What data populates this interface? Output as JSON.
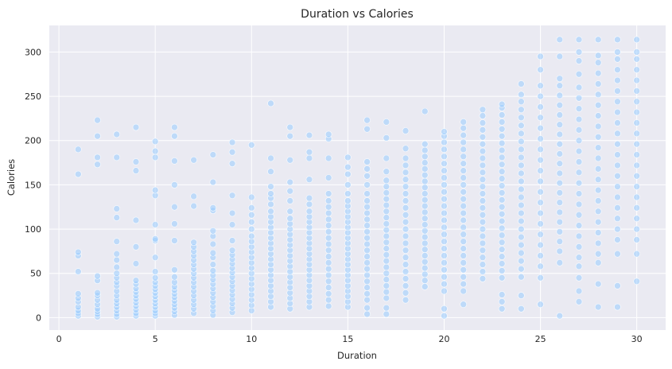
{
  "chart_data": {
    "type": "scatter",
    "title": "Duration vs Calories",
    "xlabel": "Duration",
    "ylabel": "Calories",
    "xlim": [
      -0.5,
      31.5
    ],
    "ylim": [
      -14,
      330
    ],
    "xticks": [
      0,
      5,
      10,
      15,
      20,
      25,
      30
    ],
    "yticks": [
      0,
      50,
      100,
      150,
      200,
      250,
      300
    ],
    "grid": true,
    "point_color": "#99ccff",
    "background_color": "#eaeaf2",
    "series": [
      {
        "points_by_duration": [
          {
            "x": 1,
            "y": [
              2,
              5,
              8,
              12,
              18,
              22,
              27,
              52,
              70,
              74,
              162,
              190
            ]
          },
          {
            "x": 2,
            "y": [
              1,
              4,
              7,
              10,
              15,
              20,
              25,
              28,
              42,
              47,
              173,
              181,
              205,
              223
            ]
          },
          {
            "x": 3,
            "y": [
              1,
              4,
              8,
              12,
              16,
              20,
              25,
              30,
              36,
              40,
              45,
              50,
              57,
              65,
              72,
              86,
              113,
              123,
              181,
              207
            ]
          },
          {
            "x": 4,
            "y": [
              2,
              5,
              9,
              13,
              17,
              21,
              25,
              29,
              33,
              38,
              42,
              61,
              80,
              110,
              166,
              176,
              215
            ]
          },
          {
            "x": 5,
            "y": [
              2,
              5,
              8,
              12,
              16,
              20,
              24,
              28,
              32,
              36,
              40,
              45,
              52,
              68,
              87,
              89,
              105,
              138,
              144,
              181,
              188,
              199
            ]
          },
          {
            "x": 6,
            "y": [
              3,
              7,
              11,
              15,
              19,
              23,
              27,
              31,
              35,
              40,
              46,
              54,
              87,
              106,
              125,
              150,
              177,
              205,
              215
            ]
          },
          {
            "x": 7,
            "y": [
              5,
              10,
              15,
              20,
              25,
              30,
              35,
              40,
              45,
              50,
              55,
              60,
              65,
              70,
              75,
              80,
              85,
              126,
              137,
              178
            ]
          },
          {
            "x": 8,
            "y": [
              3,
              8,
              13,
              18,
              23,
              28,
              33,
              38,
              43,
              48,
              53,
              60,
              68,
              73,
              83,
              92,
              98,
              121,
              124,
              153,
              184
            ]
          },
          {
            "x": 9,
            "y": [
              6,
              11,
              16,
              21,
              26,
              31,
              36,
              41,
              46,
              51,
              56,
              61,
              66,
              71,
              76,
              87,
              105,
              118,
              138,
              174,
              187,
              198
            ]
          },
          {
            "x": 10,
            "y": [
              8,
              14,
              20,
              26,
              32,
              38,
              44,
              50,
              56,
              62,
              68,
              74,
              80,
              86,
              92,
              100,
              108,
              116,
              124,
              136,
              195
            ]
          },
          {
            "x": 11,
            "y": [
              12,
              18,
              24,
              30,
              36,
              42,
              48,
              54,
              60,
              66,
              72,
              78,
              84,
              90,
              96,
              102,
              108,
              114,
              120,
              128,
              135,
              140,
              148,
              165,
              180,
              242
            ]
          },
          {
            "x": 12,
            "y": [
              10,
              16,
              22,
              28,
              34,
              40,
              46,
              52,
              58,
              64,
              70,
              76,
              82,
              88,
              94,
              100,
              106,
              112,
              120,
              132,
              143,
              153,
              178,
              205,
              215
            ]
          },
          {
            "x": 13,
            "y": [
              12,
              18,
              24,
              30,
              36,
              42,
              48,
              54,
              60,
              66,
              72,
              78,
              84,
              90,
              96,
              102,
              108,
              114,
              120,
              128,
              135,
              156,
              180,
              187,
              206
            ]
          },
          {
            "x": 14,
            "y": [
              13,
              20,
              27,
              34,
              41,
              48,
              55,
              62,
              69,
              76,
              83,
              90,
              97,
              104,
              111,
              118,
              125,
              132,
              140,
              158,
              180,
              202,
              207
            ]
          },
          {
            "x": 15,
            "y": [
              12,
              18,
              24,
              30,
              36,
              42,
              48,
              54,
              60,
              66,
              72,
              78,
              84,
              90,
              96,
              102,
              108,
              114,
              120,
              126,
              132,
              140,
              150,
              162,
              170,
              181
            ]
          },
          {
            "x": 16,
            "y": [
              4,
              11,
              20,
              27,
              34,
              41,
              48,
              55,
              62,
              69,
              76,
              83,
              90,
              97,
              104,
              111,
              118,
              125,
              132,
              140,
              150,
              160,
              168,
              176,
              213,
              223
            ]
          },
          {
            "x": 17,
            "y": [
              4,
              11,
              22,
              29,
              36,
              43,
              50,
              57,
              64,
              71,
              78,
              85,
              92,
              99,
              106,
              113,
              120,
              127,
              134,
              141,
              148,
              155,
              165,
              180,
              203,
              221
            ]
          },
          {
            "x": 18,
            "y": [
              20,
              28,
              36,
              44,
              52,
              60,
              68,
              76,
              84,
              92,
              100,
              108,
              116,
              124,
              132,
              140,
              148,
              156,
              164,
              172,
              180,
              191,
              211
            ]
          },
          {
            "x": 19,
            "y": [
              35,
              42,
              49,
              56,
              63,
              70,
              77,
              84,
              91,
              98,
              105,
              112,
              119,
              126,
              133,
              140,
              147,
              154,
              161,
              168,
              175,
              182,
              189,
              196,
              233
            ]
          },
          {
            "x": 20,
            "y": [
              2,
              10,
              30,
              38,
              46,
              54,
              62,
              70,
              78,
              86,
              94,
              102,
              110,
              118,
              126,
              134,
              142,
              150,
              158,
              166,
              174,
              182,
              190,
              198,
              205,
              210
            ]
          },
          {
            "x": 21,
            "y": [
              15,
              30,
              38,
              46,
              54,
              62,
              70,
              78,
              86,
              94,
              102,
              110,
              118,
              126,
              134,
              142,
              150,
              158,
              166,
              174,
              182,
              190,
              198,
              206,
              214,
              221
            ]
          },
          {
            "x": 22,
            "y": [
              44,
              52,
              60,
              68,
              76,
              84,
              92,
              100,
              108,
              116,
              124,
              132,
              140,
              148,
              156,
              164,
              172,
              180,
              188,
              196,
              204,
              212,
              220,
              228,
              235
            ]
          },
          {
            "x": 23,
            "y": [
              10,
              18,
              26,
              45,
              53,
              61,
              69,
              77,
              85,
              93,
              101,
              109,
              117,
              125,
              133,
              141,
              149,
              157,
              165,
              173,
              181,
              189,
              197,
              205,
              213,
              221,
              229,
              237,
              241
            ]
          },
          {
            "x": 24,
            "y": [
              10,
              25,
              46,
              55,
              64,
              73,
              82,
              91,
              100,
              109,
              118,
              127,
              136,
              145,
              154,
              163,
              172,
              181,
              190,
              199,
              208,
              217,
              226,
              235,
              244,
              252,
              264
            ]
          },
          {
            "x": 25,
            "y": [
              15,
              45,
              58,
              70,
              82,
              94,
              106,
              118,
              130,
              142,
              154,
              166,
              178,
              190,
              202,
              214,
              226,
              238,
              250,
              262,
              280,
              295
            ]
          },
          {
            "x": 26,
            "y": [
              2,
              62,
              75,
              86,
              97,
              108,
              119,
              130,
              141,
              152,
              163,
              174,
              185,
              196,
              207,
              218,
              229,
              240,
              251,
              262,
              270,
              295,
              314
            ]
          },
          {
            "x": 27,
            "y": [
              18,
              30,
              45,
              58,
              68,
              80,
              92,
              104,
              116,
              128,
              140,
              152,
              164,
              176,
              188,
              200,
              212,
              224,
              236,
              248,
              260,
              275,
              290,
              300,
              314
            ]
          },
          {
            "x": 28,
            "y": [
              12,
              38,
              62,
              72,
              84,
              96,
              108,
              120,
              132,
              144,
              156,
              168,
              180,
              192,
              204,
              216,
              228,
              240,
              252,
              264,
              276,
              288,
              296,
              314
            ]
          },
          {
            "x": 29,
            "y": [
              12,
              36,
              72,
              88,
              100,
              112,
              124,
              136,
              148,
              160,
              172,
              184,
              196,
              208,
              220,
              232,
              244,
              256,
              268,
              280,
              292,
              300,
              314
            ]
          },
          {
            "x": 30,
            "y": [
              41,
              72,
              88,
              100,
              112,
              124,
              136,
              148,
              160,
              172,
              184,
              196,
              208,
              220,
              232,
              244,
              256,
              268,
              280,
              292,
              300,
              314
            ]
          }
        ]
      }
    ]
  }
}
